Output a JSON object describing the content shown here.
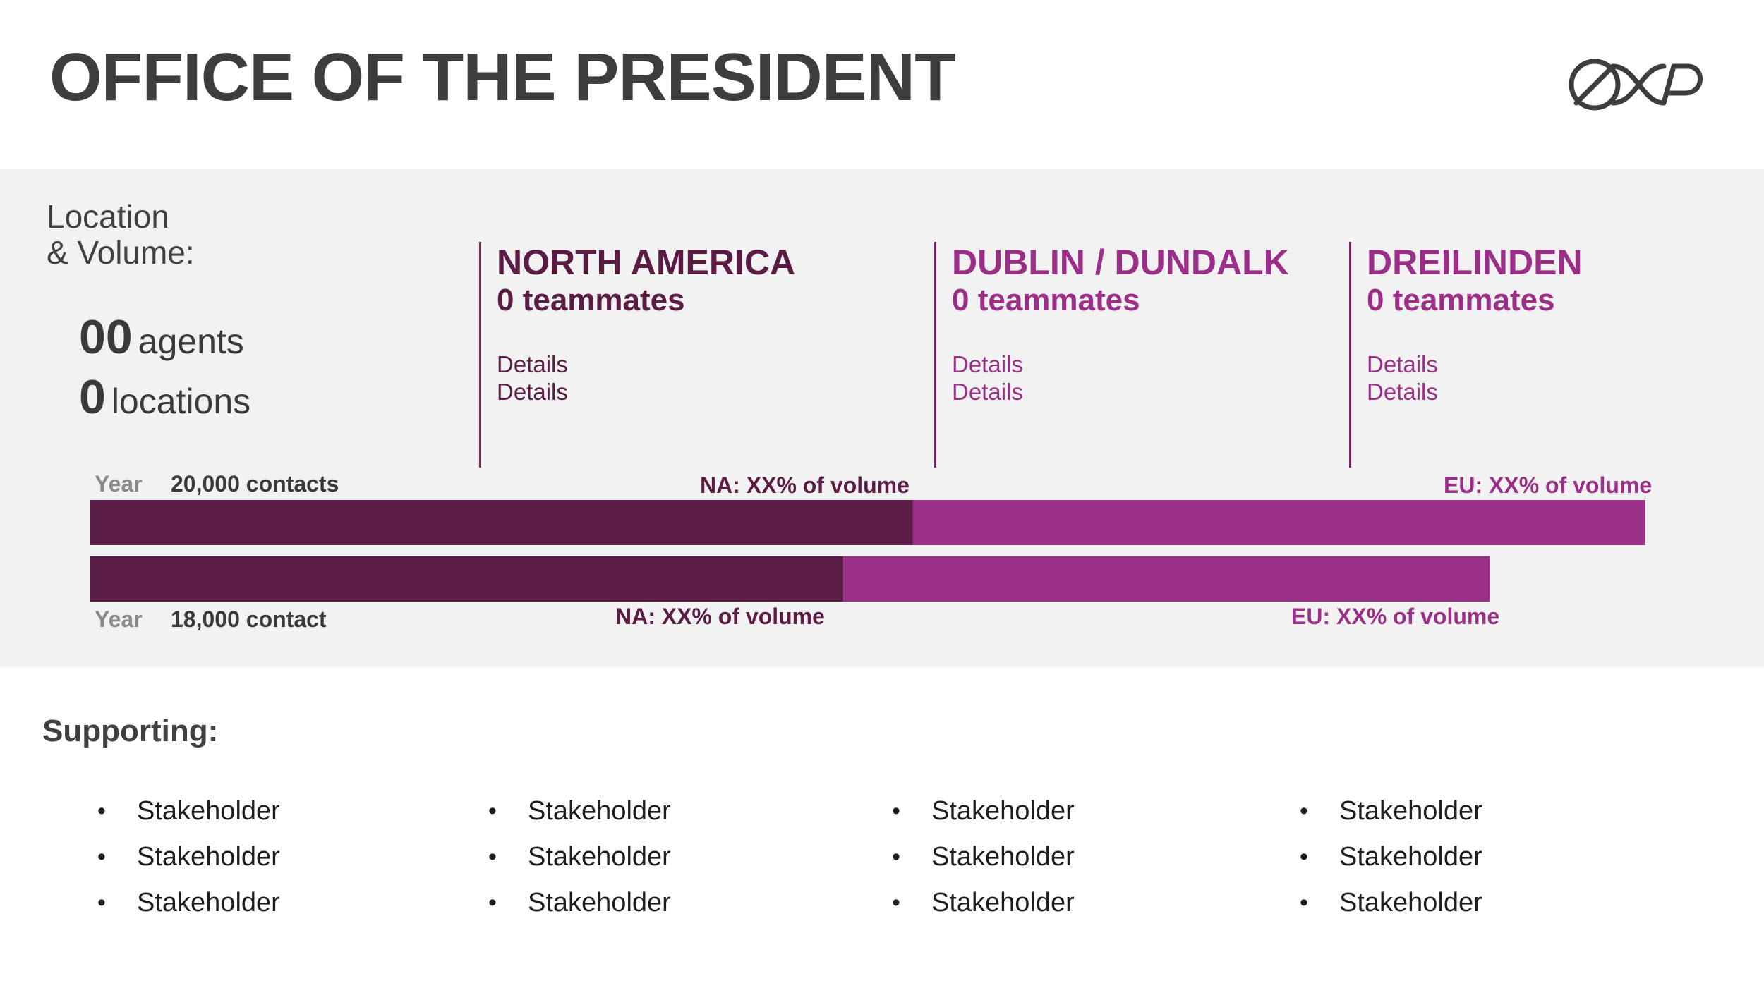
{
  "header": {
    "title": "OFFICE OF THE PRESIDENT",
    "logo_icon": "cxp-logo-icon"
  },
  "location_volume": {
    "label_line1": "Location",
    "label_line2": "& Volume:",
    "agents_num": "00",
    "agents_word": "agents",
    "locations_num": "0",
    "locations_word": "locations"
  },
  "regions": [
    {
      "name": "NORTH AMERICA",
      "teammates": "0 teammates",
      "details": [
        "Details",
        "Details"
      ],
      "color": "#5a1c44"
    },
    {
      "name": "DUBLIN / DUNDALK",
      "teammates": "0 teammates",
      "details": [
        "Details",
        "Details"
      ],
      "color": "#9b2f87"
    },
    {
      "name": "DREILINDEN",
      "teammates": "0 teammates",
      "details": [
        "Details",
        "Details"
      ],
      "color": "#9b2f87"
    }
  ],
  "chart_data": {
    "type": "bar",
    "orientation": "horizontal",
    "stacked": true,
    "categories": [
      "Year 20,000 contacts",
      "Year 18,000 contact"
    ],
    "rows": [
      {
        "year_label": "Year",
        "contacts_label": "20,000 contacts",
        "total": 20000,
        "na_share": 0.529,
        "na_label": "NA: XX% of volume",
        "eu_label": "EU: XX% of volume"
      },
      {
        "year_label": "Year",
        "contacts_label": "18,000 contact",
        "total": 18000,
        "na_share": 0.538,
        "na_label": "NA: XX% of volume",
        "eu_label": "EU: XX% of volume"
      }
    ],
    "series": [
      {
        "name": "NA",
        "color": "#5a1c44"
      },
      {
        "name": "EU",
        "color": "#9b2f87"
      }
    ],
    "xlim": [
      0,
      20000
    ]
  },
  "supporting": {
    "label": "Supporting:",
    "columns": [
      [
        "Stakeholder",
        "Stakeholder",
        "Stakeholder"
      ],
      [
        "Stakeholder",
        "Stakeholder",
        "Stakeholder"
      ],
      [
        "Stakeholder",
        "Stakeholder",
        "Stakeholder"
      ],
      [
        "Stakeholder",
        "Stakeholder",
        "Stakeholder"
      ]
    ]
  }
}
